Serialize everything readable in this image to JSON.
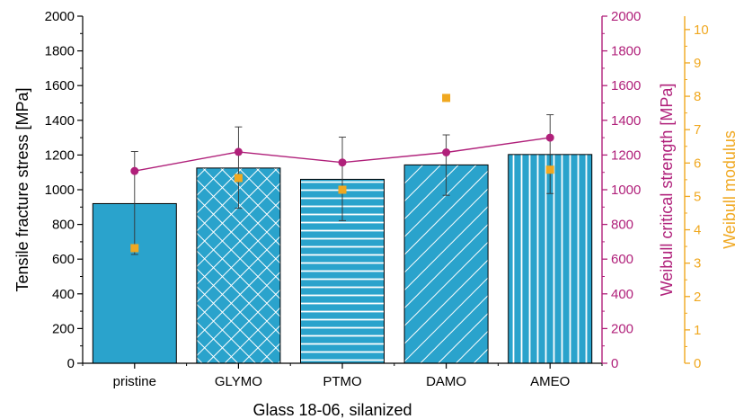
{
  "chart_data": {
    "type": "bar",
    "categories": [
      "pristine",
      "GLYMO",
      "PTMO",
      "DAMO",
      "AMEO"
    ],
    "xlabel": "Glass 18-06, silanized",
    "ylabel": "Tensile fracture stress [MPa]",
    "ylim": [
      0,
      2000
    ],
    "yticks": [
      0,
      200,
      400,
      600,
      800,
      1000,
      1200,
      1400,
      1600,
      1800,
      2000
    ],
    "series": [
      {
        "type": "bar",
        "axis": "left",
        "values": [
          920,
          1125,
          1060,
          1143,
          1203
        ],
        "error_upper": [
          1220,
          1362,
          1303,
          1316,
          1432
        ],
        "error_lower": [
          627,
          893,
          822,
          968,
          978
        ],
        "patterns": [
          "solid",
          "crosshatch",
          "horizontal",
          "diagonal",
          "vertical"
        ],
        "color": "#2aa3cc"
      },
      {
        "type": "line",
        "axis": "right1",
        "values": [
          1108,
          1218,
          1157,
          1215,
          1300
        ],
        "color": "#b0207a"
      },
      {
        "type": "scatter",
        "axis": "right2",
        "values": [
          3.45,
          5.55,
          5.2,
          7.95,
          5.8
        ],
        "color": "#f0a820"
      }
    ],
    "right_axis_1": {
      "label": "Weibull critical strength [MPa]",
      "ylim": [
        0,
        2000
      ],
      "ticks": [
        0,
        200,
        400,
        600,
        800,
        1000,
        1200,
        1400,
        1600,
        1800,
        2000
      ],
      "color": "#b0207a"
    },
    "right_axis_2": {
      "label": "Weibull modulus",
      "ylim": [
        0,
        10.4
      ],
      "ticks": [
        0,
        1,
        2,
        3,
        4,
        5,
        6,
        7,
        8,
        9,
        10
      ],
      "color": "#f0a820"
    }
  }
}
